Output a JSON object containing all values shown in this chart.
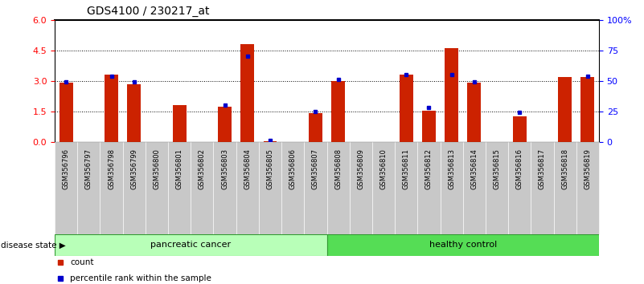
{
  "title": "GDS4100 / 230217_at",
  "samples": [
    "GSM356796",
    "GSM356797",
    "GSM356798",
    "GSM356799",
    "GSM356800",
    "GSM356801",
    "GSM356802",
    "GSM356803",
    "GSM356804",
    "GSM356805",
    "GSM356806",
    "GSM356807",
    "GSM356808",
    "GSM356809",
    "GSM356810",
    "GSM356811",
    "GSM356812",
    "GSM356813",
    "GSM356814",
    "GSM356815",
    "GSM356816",
    "GSM356817",
    "GSM356818",
    "GSM356819"
  ],
  "red_values": [
    2.9,
    0.0,
    3.3,
    2.85,
    0.0,
    1.8,
    0.0,
    1.75,
    4.8,
    0.05,
    0.0,
    1.4,
    3.0,
    0.0,
    0.0,
    3.3,
    1.55,
    4.6,
    2.9,
    0.0,
    1.25,
    0.0,
    3.2,
    3.2
  ],
  "blue_values": [
    49,
    0,
    54,
    49,
    0,
    0,
    0,
    30,
    70,
    1,
    0,
    25,
    51,
    0,
    0,
    55,
    28,
    55,
    49,
    0,
    24,
    0,
    0,
    54
  ],
  "group_labels": [
    "pancreatic cancer",
    "healthy control"
  ],
  "pc_count": 12,
  "hc_count": 12,
  "left_ylim": [
    0,
    6
  ],
  "left_yticks": [
    0,
    1.5,
    3.0,
    4.5,
    6
  ],
  "right_yticks": [
    0,
    25,
    50,
    75,
    100
  ],
  "bar_color": "#cc2200",
  "dot_color": "#0000cc",
  "cell_bg_color": "#c8c8c8",
  "pc_color": "#b8ffb8",
  "hc_color": "#55dd55",
  "ds_border_color": "#339933",
  "legend_count_label": "count",
  "legend_pct_label": "percentile rank within the sample"
}
